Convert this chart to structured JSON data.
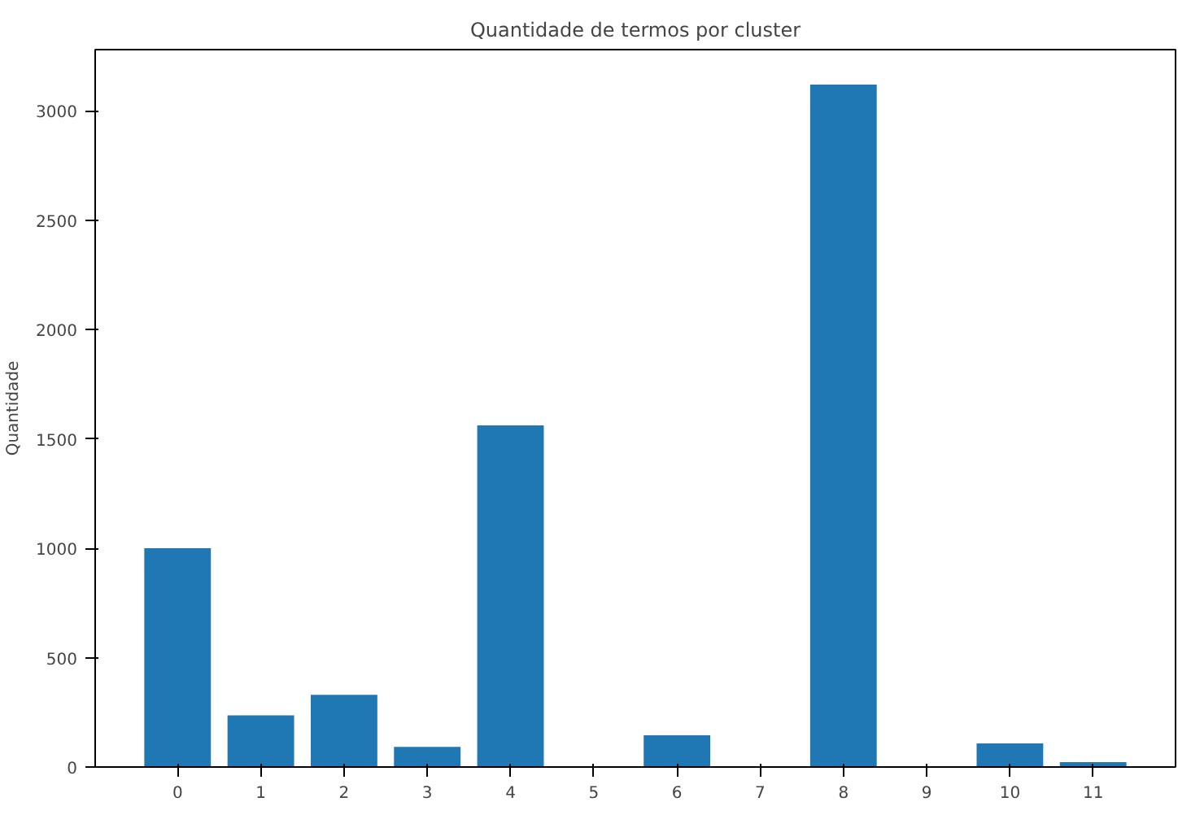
{
  "chart_data": {
    "type": "bar",
    "title": "Quantidade de termos por cluster",
    "ylabel": "Quantidade",
    "categories": [
      "0",
      "1",
      "2",
      "3",
      "4",
      "5",
      "6",
      "7",
      "8",
      "9",
      "10",
      "11"
    ],
    "values": [
      1000,
      236,
      330,
      92,
      1562,
      0,
      145,
      0,
      3120,
      0,
      108,
      22
    ],
    "color": "#1f77b4",
    "ylim": [
      0,
      3280
    ],
    "yticks": [
      0,
      500,
      1000,
      1500,
      2000,
      2500,
      3000
    ],
    "grid": false
  }
}
